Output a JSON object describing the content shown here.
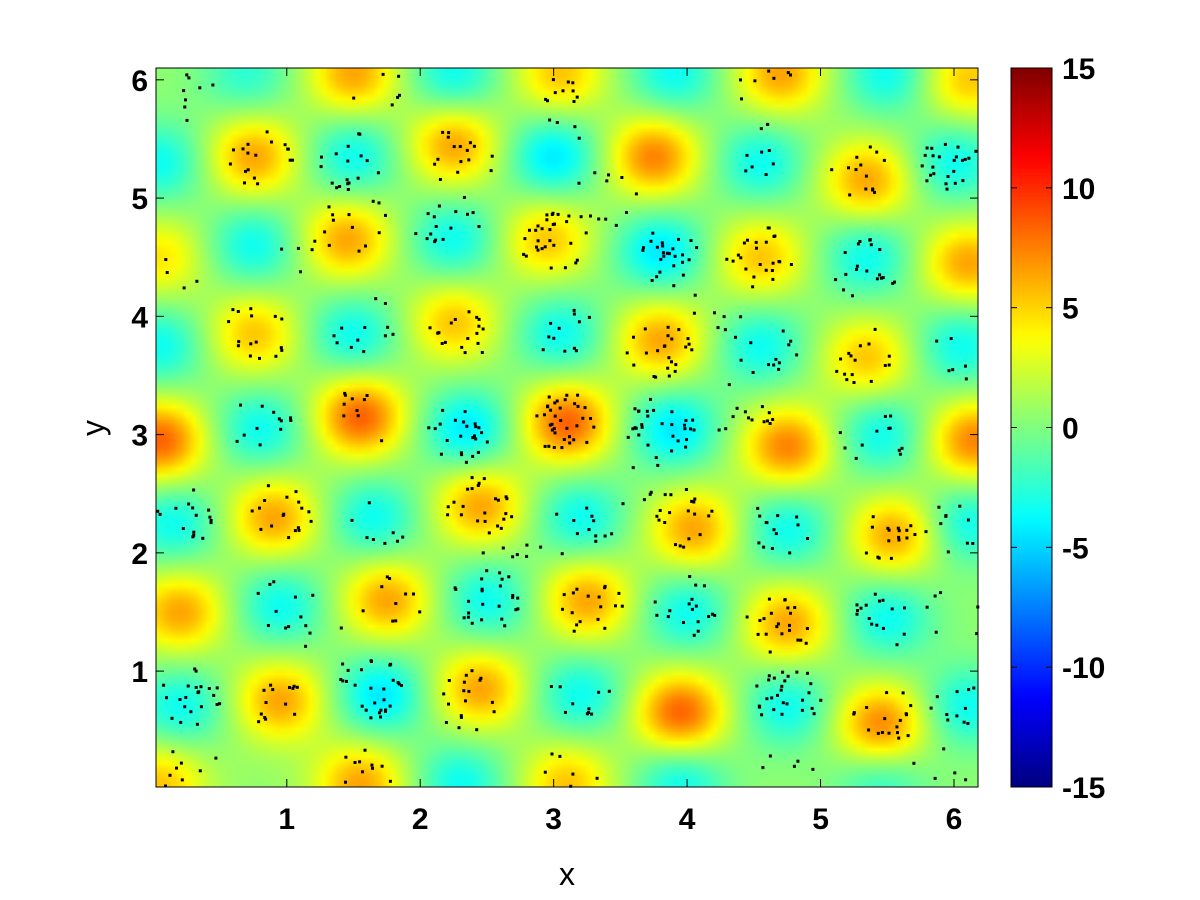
{
  "chart_data": {
    "type": "heatmap",
    "title": "",
    "xlabel": "x",
    "ylabel": "y",
    "xlim": [
      0.02,
      6.18
    ],
    "ylim": [
      0.02,
      6.1
    ],
    "x_ticks": [
      1,
      2,
      3,
      4,
      5,
      6
    ],
    "y_ticks": [
      1,
      2,
      3,
      4,
      5,
      6
    ],
    "colorbar": {
      "colormap": "jet",
      "clim": [
        -15,
        15
      ],
      "ticks": [
        15,
        10,
        5,
        0,
        -5,
        -10,
        -15
      ]
    },
    "background_level": 0.5,
    "field_extrema": [
      {
        "x": 1.5,
        "y": 6.05,
        "v": 6
      },
      {
        "x": 3.05,
        "y": 6.05,
        "v": 5
      },
      {
        "x": 4.7,
        "y": 6.05,
        "v": 6
      },
      {
        "x": 6.1,
        "y": 6.0,
        "v": 5
      },
      {
        "x": 2.25,
        "y": 6.05,
        "v": -4
      },
      {
        "x": 3.9,
        "y": 6.05,
        "v": -4
      },
      {
        "x": 5.5,
        "y": 6.05,
        "v": -4
      },
      {
        "x": 0.7,
        "y": 6.05,
        "v": -3
      },
      {
        "x": 0.75,
        "y": 5.35,
        "v": 6
      },
      {
        "x": 2.25,
        "y": 5.45,
        "v": 6
      },
      {
        "x": 3.75,
        "y": 5.35,
        "v": 7
      },
      {
        "x": 5.35,
        "y": 5.15,
        "v": 6
      },
      {
        "x": 0.05,
        "y": 5.3,
        "v": -4
      },
      {
        "x": 1.5,
        "y": 5.35,
        "v": -4
      },
      {
        "x": 3.0,
        "y": 5.35,
        "v": -5
      },
      {
        "x": 4.55,
        "y": 5.3,
        "v": -4
      },
      {
        "x": 6.0,
        "y": 5.3,
        "v": -4
      },
      {
        "x": 1.45,
        "y": 4.65,
        "v": 6
      },
      {
        "x": 2.95,
        "y": 4.65,
        "v": 5
      },
      {
        "x": 4.55,
        "y": 4.5,
        "v": 5
      },
      {
        "x": 6.1,
        "y": 4.45,
        "v": 6
      },
      {
        "x": 0.05,
        "y": 4.5,
        "v": 4
      },
      {
        "x": 0.75,
        "y": 4.6,
        "v": -4
      },
      {
        "x": 2.25,
        "y": 4.65,
        "v": -4
      },
      {
        "x": 3.8,
        "y": 4.55,
        "v": -5
      },
      {
        "x": 5.35,
        "y": 4.5,
        "v": -4
      },
      {
        "x": 0.75,
        "y": 3.85,
        "v": 5
      },
      {
        "x": 2.25,
        "y": 3.95,
        "v": 5
      },
      {
        "x": 3.8,
        "y": 3.8,
        "v": 6
      },
      {
        "x": 5.35,
        "y": 3.65,
        "v": 5
      },
      {
        "x": 0.05,
        "y": 3.75,
        "v": -4
      },
      {
        "x": 1.5,
        "y": 3.85,
        "v": -4
      },
      {
        "x": 3.05,
        "y": 3.85,
        "v": -4
      },
      {
        "x": 4.55,
        "y": 3.75,
        "v": -4
      },
      {
        "x": 6.05,
        "y": 3.75,
        "v": -4
      },
      {
        "x": 0.05,
        "y": 2.95,
        "v": 8
      },
      {
        "x": 1.55,
        "y": 3.15,
        "v": 8
      },
      {
        "x": 3.1,
        "y": 3.1,
        "v": 8
      },
      {
        "x": 4.75,
        "y": 2.9,
        "v": 7
      },
      {
        "x": 6.15,
        "y": 2.95,
        "v": 7
      },
      {
        "x": 0.8,
        "y": 3.05,
        "v": -4
      },
      {
        "x": 2.35,
        "y": 3.05,
        "v": -5
      },
      {
        "x": 3.9,
        "y": 3.05,
        "v": -5
      },
      {
        "x": 5.45,
        "y": 3.0,
        "v": -4
      },
      {
        "x": 0.9,
        "y": 2.3,
        "v": 6
      },
      {
        "x": 2.45,
        "y": 2.4,
        "v": 6
      },
      {
        "x": 4.05,
        "y": 2.2,
        "v": 6
      },
      {
        "x": 5.55,
        "y": 2.15,
        "v": 6
      },
      {
        "x": 0.15,
        "y": 2.25,
        "v": -4
      },
      {
        "x": 1.65,
        "y": 2.3,
        "v": -4
      },
      {
        "x": 3.2,
        "y": 2.3,
        "v": -4
      },
      {
        "x": 4.75,
        "y": 2.2,
        "v": -4
      },
      {
        "x": 6.1,
        "y": 2.25,
        "v": -4
      },
      {
        "x": 0.2,
        "y": 1.5,
        "v": 6
      },
      {
        "x": 1.75,
        "y": 1.6,
        "v": 6
      },
      {
        "x": 3.25,
        "y": 1.6,
        "v": 6
      },
      {
        "x": 4.75,
        "y": 1.4,
        "v": 6
      },
      {
        "x": 0.95,
        "y": 1.55,
        "v": -4
      },
      {
        "x": 2.5,
        "y": 1.6,
        "v": -4
      },
      {
        "x": 4.0,
        "y": 1.5,
        "v": -4
      },
      {
        "x": 5.5,
        "y": 1.45,
        "v": -4
      },
      {
        "x": 0.95,
        "y": 0.75,
        "v": 6
      },
      {
        "x": 2.45,
        "y": 0.85,
        "v": 6
      },
      {
        "x": 3.95,
        "y": 0.65,
        "v": 8
      },
      {
        "x": 5.45,
        "y": 0.55,
        "v": 7
      },
      {
        "x": 0.2,
        "y": 0.7,
        "v": -4
      },
      {
        "x": 1.7,
        "y": 0.8,
        "v": -5
      },
      {
        "x": 3.2,
        "y": 0.8,
        "v": -4
      },
      {
        "x": 4.75,
        "y": 0.7,
        "v": -4
      },
      {
        "x": 6.1,
        "y": 0.7,
        "v": -4
      },
      {
        "x": 1.55,
        "y": 0.05,
        "v": 6
      },
      {
        "x": 3.1,
        "y": 0.05,
        "v": 5
      },
      {
        "x": 0.05,
        "y": 0.05,
        "v": 5
      },
      {
        "x": 2.3,
        "y": 0.05,
        "v": -4
      },
      {
        "x": 3.95,
        "y": 0.05,
        "v": -4
      },
      {
        "x": 5.45,
        "y": 0.05,
        "v": -3
      }
    ],
    "particle_clusters": [
      {
        "x": 0.2,
        "y": 5.9,
        "n": 10
      },
      {
        "x": 1.6,
        "y": 5.95,
        "n": 10
      },
      {
        "x": 3.2,
        "y": 6.0,
        "n": 10
      },
      {
        "x": 4.6,
        "y": 5.95,
        "n": 10
      },
      {
        "x": 0.8,
        "y": 5.35,
        "n": 18
      },
      {
        "x": 1.5,
        "y": 5.3,
        "n": 18
      },
      {
        "x": 2.3,
        "y": 5.35,
        "n": 16
      },
      {
        "x": 3.4,
        "y": 5.0,
        "n": 12
      },
      {
        "x": 4.5,
        "y": 5.4,
        "n": 10
      },
      {
        "x": 5.3,
        "y": 5.2,
        "n": 14
      },
      {
        "x": 6.0,
        "y": 5.3,
        "n": 28
      },
      {
        "x": 1.5,
        "y": 4.8,
        "n": 12
      },
      {
        "x": 2.2,
        "y": 4.8,
        "n": 16
      },
      {
        "x": 3.0,
        "y": 4.65,
        "n": 30
      },
      {
        "x": 3.9,
        "y": 4.5,
        "n": 26
      },
      {
        "x": 4.55,
        "y": 4.5,
        "n": 24
      },
      {
        "x": 5.35,
        "y": 4.4,
        "n": 20
      },
      {
        "x": 0.1,
        "y": 4.4,
        "n": 6
      },
      {
        "x": 0.75,
        "y": 3.85,
        "n": 16
      },
      {
        "x": 1.6,
        "y": 3.9,
        "n": 12
      },
      {
        "x": 2.3,
        "y": 3.85,
        "n": 18
      },
      {
        "x": 3.1,
        "y": 3.8,
        "n": 12
      },
      {
        "x": 3.8,
        "y": 3.7,
        "n": 24
      },
      {
        "x": 4.6,
        "y": 3.75,
        "n": 12
      },
      {
        "x": 5.35,
        "y": 3.65,
        "n": 16
      },
      {
        "x": 6.0,
        "y": 3.7,
        "n": 8
      },
      {
        "x": 0.8,
        "y": 3.05,
        "n": 12
      },
      {
        "x": 1.6,
        "y": 3.15,
        "n": 10
      },
      {
        "x": 2.3,
        "y": 3.0,
        "n": 24
      },
      {
        "x": 3.1,
        "y": 3.1,
        "n": 36
      },
      {
        "x": 3.8,
        "y": 3.05,
        "n": 30
      },
      {
        "x": 4.4,
        "y": 3.2,
        "n": 14
      },
      {
        "x": 5.4,
        "y": 3.0,
        "n": 12
      },
      {
        "x": 0.2,
        "y": 2.3,
        "n": 16
      },
      {
        "x": 0.95,
        "y": 2.35,
        "n": 18
      },
      {
        "x": 1.7,
        "y": 2.3,
        "n": 8
      },
      {
        "x": 2.45,
        "y": 2.4,
        "n": 24
      },
      {
        "x": 3.2,
        "y": 2.2,
        "n": 12
      },
      {
        "x": 4.0,
        "y": 2.3,
        "n": 20
      },
      {
        "x": 4.7,
        "y": 2.25,
        "n": 14
      },
      {
        "x": 5.55,
        "y": 2.15,
        "n": 18
      },
      {
        "x": 6.05,
        "y": 2.2,
        "n": 10
      },
      {
        "x": 1.0,
        "y": 1.55,
        "n": 10
      },
      {
        "x": 1.8,
        "y": 1.55,
        "n": 10
      },
      {
        "x": 2.5,
        "y": 1.6,
        "n": 24
      },
      {
        "x": 3.3,
        "y": 1.55,
        "n": 18
      },
      {
        "x": 4.0,
        "y": 1.55,
        "n": 18
      },
      {
        "x": 4.7,
        "y": 1.4,
        "n": 22
      },
      {
        "x": 5.5,
        "y": 1.45,
        "n": 16
      },
      {
        "x": 6.05,
        "y": 1.5,
        "n": 8
      },
      {
        "x": 0.3,
        "y": 0.8,
        "n": 22
      },
      {
        "x": 1.0,
        "y": 0.7,
        "n": 14
      },
      {
        "x": 1.65,
        "y": 0.85,
        "n": 26
      },
      {
        "x": 2.35,
        "y": 0.75,
        "n": 18
      },
      {
        "x": 3.2,
        "y": 0.85,
        "n": 10
      },
      {
        "x": 4.75,
        "y": 0.8,
        "n": 28
      },
      {
        "x": 5.5,
        "y": 0.6,
        "n": 18
      },
      {
        "x": 6.05,
        "y": 0.7,
        "n": 14
      },
      {
        "x": 0.3,
        "y": 0.15,
        "n": 10
      },
      {
        "x": 1.55,
        "y": 0.1,
        "n": 14
      },
      {
        "x": 3.1,
        "y": 0.1,
        "n": 8
      },
      {
        "x": 4.8,
        "y": 0.15,
        "n": 6
      },
      {
        "x": 5.9,
        "y": 0.15,
        "n": 6
      },
      {
        "x": 3.1,
        "y": 5.7,
        "n": 6
      },
      {
        "x": 1.1,
        "y": 4.5,
        "n": 6
      },
      {
        "x": 4.2,
        "y": 4.0,
        "n": 8
      },
      {
        "x": 2.7,
        "y": 2.0,
        "n": 8
      },
      {
        "x": 1.3,
        "y": 1.2,
        "n": 6
      },
      {
        "x": 3.6,
        "y": 2.6,
        "n": 6
      }
    ],
    "particle_color": "#000000"
  }
}
